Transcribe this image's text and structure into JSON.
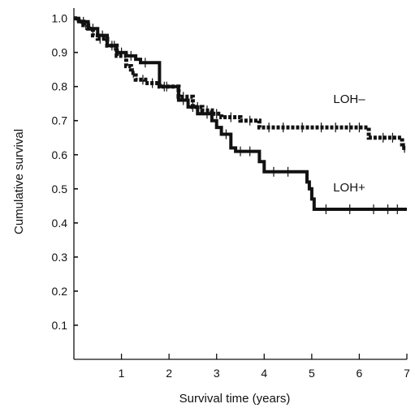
{
  "chart_data": {
    "type": "line",
    "title": "",
    "xlabel": "Survival time (years)",
    "ylabel": "Cumulative survival",
    "xlim": [
      0,
      7
    ],
    "ylim": [
      0,
      1.03
    ],
    "x_ticks": [
      "1",
      "2",
      "3",
      "4",
      "5",
      "6",
      "7"
    ],
    "x_tick_values": [
      1,
      2,
      3,
      4,
      5,
      6,
      7
    ],
    "y_ticks": [
      "0.1",
      "0.2",
      "0.3",
      "0.4",
      "0.5",
      "0.6",
      "0.7",
      "0.8",
      "0.9",
      "1.0"
    ],
    "y_tick_values": [
      0.1,
      0.2,
      0.3,
      0.4,
      0.5,
      0.6,
      0.7,
      0.8,
      0.9,
      1.0
    ],
    "grid": false,
    "series": [
      {
        "name": "LOH–",
        "color": "#111111",
        "style": "dashed",
        "steps": [
          [
            0,
            1.0
          ],
          [
            0.1,
            0.99
          ],
          [
            0.2,
            0.98
          ],
          [
            0.3,
            0.97
          ],
          [
            0.4,
            0.95
          ],
          [
            0.5,
            0.94
          ],
          [
            0.7,
            0.92
          ],
          [
            0.9,
            0.89
          ],
          [
            1.1,
            0.86
          ],
          [
            1.2,
            0.84
          ],
          [
            1.3,
            0.82
          ],
          [
            1.5,
            0.81
          ],
          [
            1.8,
            0.8
          ],
          [
            2.2,
            0.77
          ],
          [
            2.5,
            0.74
          ],
          [
            2.7,
            0.73
          ],
          [
            2.9,
            0.72
          ],
          [
            3.1,
            0.71
          ],
          [
            3.5,
            0.7
          ],
          [
            3.9,
            0.68
          ],
          [
            4.6,
            0.68
          ],
          [
            5.6,
            0.68
          ],
          [
            6.1,
            0.68
          ],
          [
            6.2,
            0.65
          ],
          [
            6.9,
            0.62
          ],
          [
            7.0,
            0.62
          ]
        ],
        "censor_x": [
          0.25,
          0.55,
          0.85,
          1.25,
          1.45,
          1.65,
          1.95,
          2.3,
          2.6,
          2.8,
          3.0,
          3.3,
          3.7,
          4.1,
          4.4,
          4.8,
          5.2,
          5.5,
          5.8,
          6.0,
          6.5,
          6.7,
          6.95
        ]
      },
      {
        "name": "LOH+",
        "color": "#111111",
        "style": "solid",
        "steps": [
          [
            0,
            1.0
          ],
          [
            0.1,
            0.99
          ],
          [
            0.3,
            0.97
          ],
          [
            0.5,
            0.95
          ],
          [
            0.7,
            0.92
          ],
          [
            0.9,
            0.9
          ],
          [
            1.1,
            0.89
          ],
          [
            1.3,
            0.88
          ],
          [
            1.4,
            0.87
          ],
          [
            1.7,
            0.87
          ],
          [
            1.8,
            0.8
          ],
          [
            2.1,
            0.8
          ],
          [
            2.2,
            0.76
          ],
          [
            2.4,
            0.74
          ],
          [
            2.6,
            0.72
          ],
          [
            2.9,
            0.7
          ],
          [
            3.0,
            0.68
          ],
          [
            3.1,
            0.66
          ],
          [
            3.3,
            0.62
          ],
          [
            3.4,
            0.61
          ],
          [
            3.8,
            0.61
          ],
          [
            3.9,
            0.58
          ],
          [
            4.0,
            0.55
          ],
          [
            4.8,
            0.55
          ],
          [
            4.9,
            0.52
          ],
          [
            4.95,
            0.5
          ],
          [
            5.0,
            0.47
          ],
          [
            5.05,
            0.44
          ],
          [
            5.5,
            0.44
          ],
          [
            7.0,
            0.44
          ]
        ],
        "censor_x": [
          0.2,
          0.4,
          0.6,
          0.8,
          1.0,
          1.2,
          1.5,
          1.9,
          2.3,
          2.5,
          2.8,
          3.2,
          3.5,
          3.7,
          4.2,
          4.5,
          5.3,
          5.8,
          6.3,
          6.6,
          6.8
        ]
      }
    ]
  }
}
